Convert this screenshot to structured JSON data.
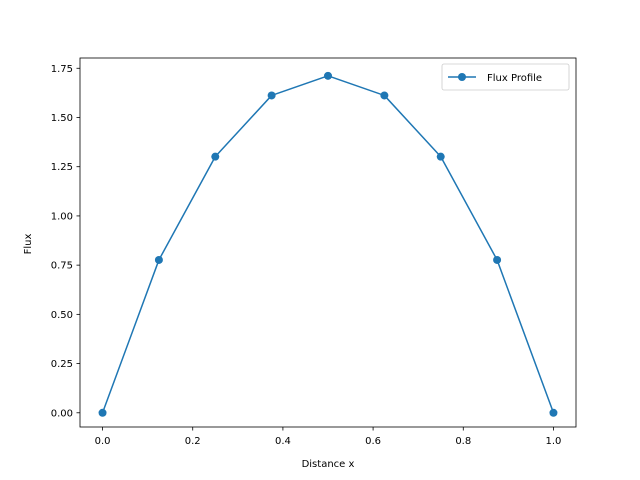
{
  "chart_data": {
    "type": "line",
    "title": "",
    "xlabel": "Distance x",
    "ylabel": "Flux",
    "xlim": [
      -0.05,
      1.05
    ],
    "ylim": [
      -0.0722,
      1.8022
    ],
    "x_ticks": [
      0.0,
      0.2,
      0.4,
      0.6,
      0.8,
      1.0
    ],
    "x_tick_labels": [
      "0.0",
      "0.2",
      "0.4",
      "0.6",
      "0.8",
      "1.0"
    ],
    "y_ticks": [
      0.0,
      0.25,
      0.5,
      0.75,
      1.0,
      1.25,
      1.5,
      1.75
    ],
    "y_tick_labels": [
      "0.00",
      "0.25",
      "0.50",
      "0.75",
      "1.00",
      "1.25",
      "1.50",
      "1.75"
    ],
    "grid": false,
    "legend_position": "top-right",
    "series": [
      {
        "name": "Flux Profile",
        "color": "#1f77b4",
        "marker": "circle",
        "x": [
          0.0,
          0.125,
          0.25,
          0.375,
          0.5,
          0.625,
          0.75,
          0.875,
          1.0
        ],
        "y": [
          0.0,
          0.7764,
          1.3011,
          1.612,
          1.7117,
          1.612,
          1.3011,
          0.7764,
          0.0
        ]
      }
    ]
  }
}
